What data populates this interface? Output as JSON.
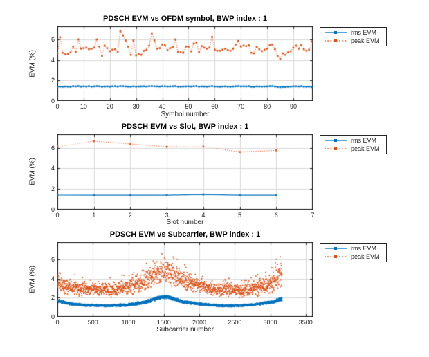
{
  "figure": {
    "background": "#ffffff"
  },
  "colors": {
    "rms": "#0072BD",
    "peak": "#D95319",
    "grid": "#D9D9D9",
    "axis": "#262626",
    "tick_label": "#262626",
    "title": "#000000",
    "legend_border": "#262626",
    "background": "#ffffff"
  },
  "legend": {
    "position": "outside-top-right",
    "items": [
      {
        "label": "rms EVM",
        "series": "rms",
        "line_style": "solid",
        "marker": "square"
      },
      {
        "label": "peak EVM",
        "series": "peak",
        "line_style": "dotted",
        "marker": "square"
      }
    ]
  },
  "chart_data": [
    {
      "type": "line",
      "title": "PDSCH EVM vs OFDM symbol, BWP index : 1",
      "xlabel": "Symbol number",
      "ylabel": "EVM (%)",
      "xlim": [
        0,
        97.4
      ],
      "ylim": [
        0,
        7.28
      ],
      "xticks": [
        0,
        10,
        20,
        30,
        40,
        50,
        60,
        70,
        80,
        90
      ],
      "yticks": [
        0,
        2,
        4,
        6
      ],
      "grid": true,
      "x_start": 0,
      "x_step": 1,
      "series": [
        {
          "name": "rms EVM",
          "color_key": "rms",
          "line_style": "solid",
          "marker": "square",
          "values": [
            1.38,
            1.4,
            1.39,
            1.41,
            1.4,
            1.38,
            1.44,
            1.42,
            1.45,
            1.4,
            1.43,
            1.41,
            1.44,
            1.4,
            1.42,
            1.45,
            1.43,
            1.39,
            1.41,
            1.42,
            1.4,
            1.43,
            1.44,
            1.41,
            1.45,
            1.44,
            1.42,
            1.4,
            1.39,
            1.43,
            1.4,
            1.41,
            1.42,
            1.43,
            1.41,
            1.44,
            1.45,
            1.43,
            1.42,
            1.41,
            1.44,
            1.43,
            1.41,
            1.42,
            1.43,
            1.45,
            1.4,
            1.39,
            1.41,
            1.42,
            1.43,
            1.41,
            1.44,
            1.45,
            1.4,
            1.42,
            1.41,
            1.4,
            1.42,
            1.45,
            1.41,
            1.4,
            1.39,
            1.41,
            1.42,
            1.4,
            1.39,
            1.41,
            1.43,
            1.45,
            1.42,
            1.43,
            1.42,
            1.44,
            1.39,
            1.38,
            1.42,
            1.41,
            1.4,
            1.41,
            1.42,
            1.44,
            1.45,
            1.41,
            1.37,
            1.35,
            1.38,
            1.37,
            1.39,
            1.4,
            1.42,
            1.43,
            1.41,
            1.44,
            1.4,
            1.39,
            1.4,
            1.36
          ]
        },
        {
          "name": "peak EVM",
          "color_key": "peak",
          "line_style": "dotted",
          "marker": "square",
          "values": [
            4.65,
            6.2,
            4.7,
            4.55,
            4.6,
            4.75,
            5.3,
            4.8,
            6.0,
            5.1,
            5.15,
            5.2,
            5.05,
            5.1,
            5.2,
            6.0,
            5.3,
            4.4,
            5.4,
            5.15,
            4.85,
            5.0,
            5.05,
            4.8,
            6.8,
            6.4,
            5.9,
            5.3,
            4.5,
            5.9,
            4.45,
            4.6,
            4.5,
            4.9,
            5.0,
            5.4,
            6.6,
            5.9,
            5.1,
            5.15,
            5.5,
            5.45,
            4.95,
            5.15,
            5.25,
            6.0,
            4.8,
            4.75,
            4.7,
            5.3,
            5.3,
            4.85,
            5.6,
            5.7,
            4.75,
            5.35,
            5.2,
            5.1,
            5.2,
            6.25,
            5.0,
            4.9,
            4.9,
            5.0,
            5.1,
            4.95,
            4.9,
            5.1,
            5.5,
            5.85,
            5.3,
            5.4,
            5.35,
            5.45,
            4.7,
            4.65,
            5.3,
            5.05,
            4.85,
            5.0,
            5.1,
            5.45,
            5.5,
            5.05,
            4.4,
            4.1,
            4.65,
            4.5,
            4.75,
            4.85,
            5.2,
            5.4,
            5.1,
            5.45,
            5.05,
            4.9,
            5.0,
            5.8
          ]
        }
      ]
    },
    {
      "type": "line",
      "title": "PDSCH EVM vs Slot, BWP index : 1",
      "xlabel": "Slot number",
      "ylabel": "EVM (%)",
      "xlim": [
        0,
        7
      ],
      "ylim": [
        0,
        7.32
      ],
      "xticks": [
        0,
        1,
        2,
        3,
        4,
        5,
        6,
        7
      ],
      "yticks": [
        0,
        2,
        4,
        6
      ],
      "grid": true,
      "series": [
        {
          "name": "rms EVM",
          "color_key": "rms",
          "line_style": "solid",
          "marker": "square",
          "x": [
            0,
            1,
            2,
            3,
            4,
            5,
            6
          ],
          "values": [
            1.41,
            1.4,
            1.4,
            1.4,
            1.47,
            1.4,
            1.4
          ]
        },
        {
          "name": "peak EVM",
          "color_key": "peak",
          "line_style": "dotted",
          "marker": "square",
          "x": [
            0,
            1,
            2,
            3,
            4,
            5,
            6
          ],
          "values": [
            6.12,
            6.65,
            6.38,
            6.1,
            6.12,
            5.6,
            5.75
          ]
        }
      ]
    },
    {
      "type": "scatter",
      "title": "PDSCH EVM vs Subcarrier, BWP index : 1",
      "xlabel": "Subcarrier number",
      "ylabel": "EVM (%)",
      "xlim": [
        0,
        3600
      ],
      "ylim": [
        0,
        7.8
      ],
      "xticks": [
        0,
        500,
        1000,
        1500,
        2000,
        2500,
        3000,
        3500
      ],
      "yticks": [
        0,
        2,
        4,
        6
      ],
      "grid": true,
      "n_points": 3168,
      "render_step": 2,
      "series": [
        {
          "name": "rms EVM",
          "color_key": "rms",
          "marker": "dot",
          "envelope": {
            "x": [
              0,
              150,
              400,
              700,
              1000,
              1250,
              1450,
              1550,
              1750,
              2000,
              2300,
              2600,
              2850,
              3050,
              3167
            ],
            "center": [
              1.7,
              1.4,
              1.22,
              1.15,
              1.25,
              1.55,
              2.05,
              2.1,
              1.6,
              1.35,
              1.15,
              1.18,
              1.35,
              1.6,
              1.9
            ],
            "spread": [
              0.1,
              0.08,
              0.07,
              0.07,
              0.08,
              0.1,
              0.12,
              0.12,
              0.1,
              0.08,
              0.07,
              0.07,
              0.08,
              0.1,
              0.12
            ]
          }
        },
        {
          "name": "peak EVM",
          "color_key": "peak",
          "marker": "dot",
          "envelope": {
            "x": [
              0,
              150,
              400,
              700,
              1000,
              1250,
              1450,
              1550,
              1750,
              2000,
              2300,
              2600,
              2850,
              3050,
              3167
            ],
            "center": [
              3.55,
              3.2,
              2.85,
              2.8,
              3.1,
              3.8,
              4.7,
              4.8,
              3.9,
              3.3,
              2.8,
              2.75,
              3.1,
              3.7,
              4.7
            ],
            "spread": [
              0.55,
              0.5,
              0.45,
              0.45,
              0.5,
              0.65,
              0.8,
              0.8,
              0.65,
              0.5,
              0.45,
              0.45,
              0.55,
              0.7,
              0.85
            ]
          }
        }
      ]
    }
  ]
}
